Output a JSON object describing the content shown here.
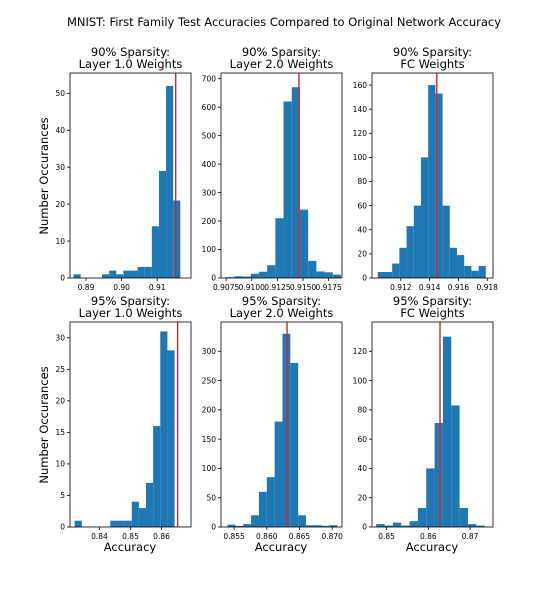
{
  "figure": {
    "title": "MNIST: First Family Test Accuracies Compared to Original Network Accuracy",
    "ylabel": "Number Occurances",
    "xlabel": "Accuracy"
  },
  "colors": {
    "bar": "#1f77b4",
    "reference_line": "#d62728",
    "axes": "#000000"
  },
  "chart_data": [
    {
      "type": "bar",
      "title": [
        "90% Sparsity:",
        "Layer 1.0 Weights"
      ],
      "xlim": [
        0.8855,
        0.9195
      ],
      "ylim": [
        0,
        55.5
      ],
      "xticks": [
        0.89,
        0.9,
        0.91
      ],
      "xticklabels": [
        "0.89",
        "0.90",
        "0.91"
      ],
      "yticks": [
        0,
        10,
        20,
        30,
        40,
        50
      ],
      "bin_edges": [
        0.8865,
        0.8885,
        0.8905,
        0.8925,
        0.8945,
        0.8965,
        0.8985,
        0.9005,
        0.9025,
        0.9045,
        0.9065,
        0.9085,
        0.9105,
        0.9125,
        0.9145,
        0.9165,
        0.9185
      ],
      "counts": [
        1,
        0,
        0,
        0,
        1,
        2,
        1,
        2,
        2,
        3,
        3,
        14,
        29,
        52,
        21,
        0
      ],
      "reference": 0.9152
    },
    {
      "type": "bar",
      "title": [
        "90% Sparsity:",
        "Layer 2.0 Weights"
      ],
      "xlim": [
        0.907,
        0.9188
      ],
      "ylim": [
        0,
        720
      ],
      "xticks": [
        0.9075,
        0.91,
        0.9125,
        0.915,
        0.9175
      ],
      "xticklabels": [
        "0.9075",
        "0.9100",
        "0.9125",
        "0.9150",
        "0.9175"
      ],
      "yticks": [
        0,
        100,
        200,
        300,
        400,
        500,
        600,
        700
      ],
      "bin_edges": [
        0.9075,
        0.9083,
        0.9091,
        0.9099,
        0.9107,
        0.9115,
        0.9123,
        0.9131,
        0.9139,
        0.9147,
        0.9155,
        0.9163,
        0.9171,
        0.9179,
        0.9187
      ],
      "counts": [
        3,
        6,
        5,
        15,
        22,
        45,
        210,
        620,
        670,
        240,
        60,
        23,
        20,
        12
      ],
      "reference": 0.9146
    },
    {
      "type": "bar",
      "title": [
        "90% Sparsity:",
        "FC Weights"
      ],
      "xlim": [
        0.91,
        0.9184
      ],
      "ylim": [
        0,
        170
      ],
      "xticks": [
        0.912,
        0.914,
        0.916,
        0.918
      ],
      "xticklabels": [
        "0.912",
        "0.914",
        "0.916",
        "0.918"
      ],
      "yticks": [
        0,
        20,
        40,
        60,
        80,
        100,
        120,
        140,
        160
      ],
      "bin_edges": [
        0.9104,
        0.9109,
        0.9114,
        0.9119,
        0.9124,
        0.9129,
        0.9134,
        0.9139,
        0.9144,
        0.9149,
        0.9154,
        0.9159,
        0.9164,
        0.9169,
        0.9174,
        0.9179
      ],
      "counts": [
        5,
        5,
        12,
        25,
        43,
        60,
        100,
        160,
        153,
        60,
        25,
        19,
        10,
        6,
        10
      ],
      "reference": 0.9145
    },
    {
      "type": "bar",
      "title": [
        "95% Sparsity:",
        "Layer 1.0 Weights"
      ],
      "xlim": [
        0.8305,
        0.8695
      ],
      "ylim": [
        0,
        32.5
      ],
      "xticks": [
        0.84,
        0.85,
        0.86
      ],
      "xticklabels": [
        "0.84",
        "0.85",
        "0.86"
      ],
      "yticks": [
        0,
        5,
        10,
        15,
        20,
        25,
        30
      ],
      "bin_edges": [
        0.832,
        0.8343,
        0.8366,
        0.8389,
        0.8412,
        0.8435,
        0.8458,
        0.8481,
        0.8504,
        0.8527,
        0.855,
        0.8573,
        0.8596,
        0.8619,
        0.8642,
        0.8665,
        0.8688
      ],
      "counts": [
        1,
        0,
        0,
        0,
        0,
        1,
        1,
        1,
        4,
        3,
        7,
        16,
        31,
        28,
        0,
        0
      ],
      "reference": 0.8652
    },
    {
      "type": "bar",
      "title": [
        "95% Sparsity:",
        "Layer 2.0 Weights"
      ],
      "xlim": [
        0.853,
        0.8715
      ],
      "ylim": [
        0,
        350
      ],
      "xticks": [
        0.855,
        0.86,
        0.865,
        0.87
      ],
      "xticklabels": [
        "0.855",
        "0.860",
        "0.865",
        "0.870"
      ],
      "yticks": [
        0,
        50,
        100,
        150,
        200,
        250,
        300
      ],
      "bin_edges": [
        0.854,
        0.8552,
        0.8564,
        0.8576,
        0.8588,
        0.86,
        0.8612,
        0.8624,
        0.8636,
        0.8648,
        0.866,
        0.8672,
        0.8684,
        0.8696,
        0.8708
      ],
      "counts": [
        4,
        2,
        5,
        20,
        60,
        85,
        180,
        330,
        280,
        20,
        3,
        3,
        2,
        3
      ],
      "reference": 0.8631
    },
    {
      "type": "bar",
      "title": [
        "95% Sparsity:",
        "FC Weights"
      ],
      "xlim": [
        0.8465,
        0.8755
      ],
      "ylim": [
        0,
        140
      ],
      "xticks": [
        0.85,
        0.86,
        0.87
      ],
      "xticklabels": [
        "0.85",
        "0.86",
        "0.87"
      ],
      "yticks": [
        0,
        20,
        40,
        60,
        80,
        100,
        120
      ],
      "bin_edges": [
        0.8475,
        0.8495,
        0.8515,
        0.8535,
        0.8555,
        0.8575,
        0.8595,
        0.8615,
        0.8635,
        0.8655,
        0.8675,
        0.8695,
        0.8715,
        0.8735
      ],
      "counts": [
        2,
        1,
        3,
        1,
        4,
        13,
        40,
        71,
        130,
        83,
        13,
        2,
        1
      ],
      "reference": 0.8628
    }
  ]
}
